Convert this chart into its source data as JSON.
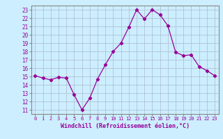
{
  "x": [
    0,
    1,
    2,
    3,
    4,
    5,
    6,
    7,
    8,
    9,
    10,
    11,
    12,
    13,
    14,
    15,
    16,
    17,
    18,
    19,
    20,
    21,
    22,
    23
  ],
  "y": [
    15.1,
    14.8,
    14.6,
    14.9,
    14.8,
    12.8,
    11.0,
    12.4,
    14.7,
    16.4,
    18.0,
    19.0,
    20.9,
    23.0,
    21.9,
    23.0,
    22.4,
    21.1,
    17.9,
    17.5,
    17.6,
    16.2,
    15.7,
    15.1
  ],
  "line_color": "#990099",
  "marker": "D",
  "marker_size": 2.2,
  "bg_color": "#cceeff",
  "grid_color": "#aabbcc",
  "xlabel": "Windchill (Refroidissement éolien,°C)",
  "xlabel_color": "#990099",
  "tick_color": "#990099",
  "spine_color": "#888888",
  "ylim": [
    10.5,
    23.5
  ],
  "xlim": [
    -0.5,
    23.5
  ],
  "yticks": [
    11,
    12,
    13,
    14,
    15,
    16,
    17,
    18,
    19,
    20,
    21,
    22,
    23
  ],
  "xticks": [
    0,
    1,
    2,
    3,
    4,
    5,
    6,
    7,
    8,
    9,
    10,
    11,
    12,
    13,
    14,
    15,
    16,
    17,
    18,
    19,
    20,
    21,
    22,
    23
  ],
  "xtick_labels": [
    "0",
    "1",
    "2",
    "3",
    "4",
    "5",
    "6",
    "7",
    "8",
    "9",
    "10",
    "11",
    "12",
    "13",
    "14",
    "15",
    "16",
    "17",
    "18",
    "19",
    "20",
    "21",
    "22",
    "23"
  ],
  "ytick_fontsize": 5.5,
  "xtick_fontsize": 5.0,
  "xlabel_fontsize": 6.0
}
